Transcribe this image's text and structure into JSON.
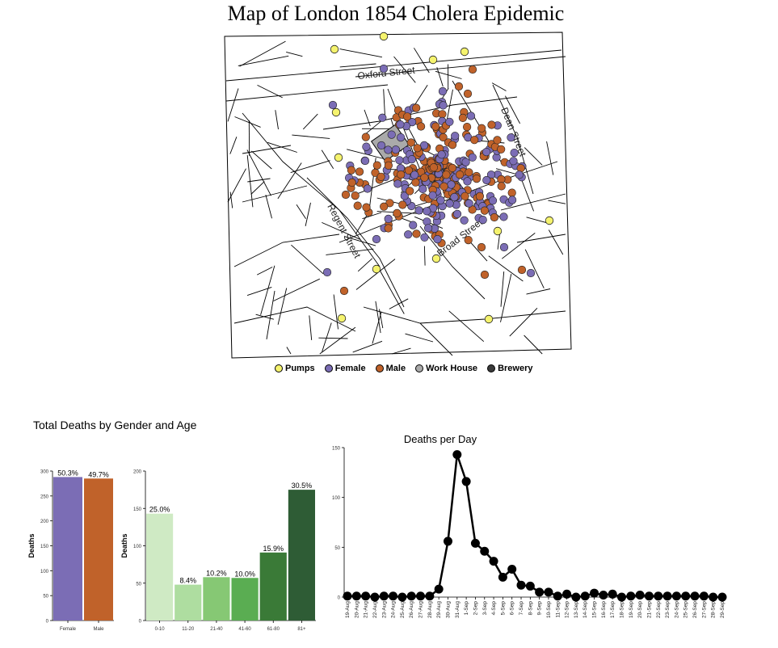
{
  "title": "Map of London 1854 Cholera Epidemic",
  "map": {
    "streets": [
      "Oxford Street",
      "Dean Street",
      "Regent Street",
      "Broad Street"
    ],
    "legend": [
      {
        "label": "Pumps",
        "color": "#f5f36e"
      },
      {
        "label": "Female",
        "color": "#7b6db5"
      },
      {
        "label": "Male",
        "color": "#c0622a"
      },
      {
        "label": "Work House",
        "color": "#aaaaaa"
      },
      {
        "label": "Brewery",
        "color": "#3a3a3a"
      }
    ]
  },
  "stats_title": "Total Deaths by Gender and Age",
  "chart_data": [
    {
      "type": "bar",
      "categories": [
        "Female",
        "Male"
      ],
      "values": [
        288,
        285
      ],
      "labels": [
        "50.3%",
        "49.7%"
      ],
      "colors": [
        "#7b6db5",
        "#c0622a"
      ],
      "ylabel": "Deaths",
      "ylim": [
        0,
        300
      ],
      "yticks": [
        0,
        50,
        100,
        150,
        200,
        250,
        300
      ]
    },
    {
      "type": "bar",
      "categories": [
        "0-10",
        "11-20",
        "21-40",
        "41-60",
        "61-80",
        "81+"
      ],
      "values": [
        143,
        48,
        58,
        57,
        91,
        175
      ],
      "labels": [
        "25.0%",
        "8.4%",
        "10.2%",
        "10.0%",
        "15.9%",
        "30.5%"
      ],
      "colors": [
        "#cfeac4",
        "#aedda0",
        "#86c874",
        "#5aad52",
        "#3a7a37",
        "#2e5c35"
      ],
      "ylabel": "Deaths",
      "ylim": [
        0,
        200
      ],
      "yticks": [
        0,
        50,
        100,
        150,
        200
      ]
    },
    {
      "type": "line",
      "title": "Deaths per Day",
      "x": [
        "19-Aug",
        "20-Aug",
        "21-Aug",
        "22-Aug",
        "23-Aug",
        "24-Aug",
        "25-Aug",
        "26-Aug",
        "27-Aug",
        "28-Aug",
        "29-Aug",
        "30-Aug",
        "31-Aug",
        "1-Sep",
        "2-Sep",
        "3-Sep",
        "4-Sep",
        "5-Sep",
        "6-Sep",
        "7-Sep",
        "8-Sep",
        "9-Sep",
        "10-Sep",
        "11-Sep",
        "12-Sep",
        "13-Sep",
        "14-Sep",
        "15-Sep",
        "16-Sep",
        "17-Sep",
        "18-Sep",
        "19-Sep",
        "20-Sep",
        "21-Sep",
        "22-Sep",
        "23-Sep",
        "24-Sep",
        "25-Sep",
        "26-Sep",
        "27-Sep",
        "28-Sep",
        "29-Sep"
      ],
      "values": [
        1,
        1,
        1,
        0,
        1,
        1,
        0,
        1,
        1,
        1,
        8,
        56,
        143,
        116,
        54,
        46,
        36,
        20,
        28,
        12,
        11,
        5,
        5,
        1,
        3,
        0,
        1,
        4,
        2,
        3,
        0,
        1,
        2,
        1,
        1,
        1,
        1,
        1,
        1,
        1,
        0,
        0
      ],
      "ylim": [
        0,
        150
      ],
      "yticks": [
        0,
        50,
        100,
        150
      ],
      "color": "#000000"
    }
  ]
}
